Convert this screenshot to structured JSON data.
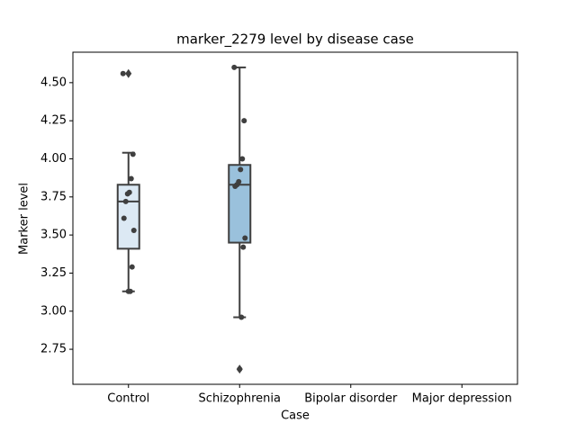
{
  "chart_data": {
    "type": "box",
    "title": "marker_2279 level by disease case",
    "x_label": "Case",
    "y_label": "Marker level",
    "categories": [
      "Control",
      "Schizophrenia",
      "Bipolar disorder",
      "Major depression"
    ],
    "boxes": [
      {
        "whislo": 3.13,
        "q1": 3.41,
        "med": 3.72,
        "q3": 3.83,
        "whishi": 4.04,
        "fliers": [
          4.56
        ],
        "color": "#dce9f4"
      },
      {
        "whislo": 2.96,
        "q1": 3.45,
        "med": 3.83,
        "q3": 3.96,
        "whishi": 4.6,
        "fliers": [
          2.62
        ],
        "color": "#9ac1dc"
      },
      null,
      null
    ],
    "points": [
      [
        4.56,
        4.03,
        3.87,
        3.78,
        3.77,
        3.72,
        3.61,
        3.53,
        3.29,
        3.13,
        3.13
      ],
      [
        4.6,
        4.25,
        4.0,
        3.93,
        3.85,
        3.83,
        3.82,
        3.48,
        3.42,
        2.96,
        2.62
      ],
      [],
      []
    ],
    "point_color": "#3f3f3f",
    "ylim": [
      2.52,
      4.7
    ],
    "yticks": [
      {
        "value": 2.75,
        "label": "2.75"
      },
      {
        "value": 3.0,
        "label": "3.00"
      },
      {
        "value": 3.25,
        "label": "3.25"
      },
      {
        "value": 3.5,
        "label": "3.50"
      },
      {
        "value": 3.75,
        "label": "3.75"
      },
      {
        "value": 4.0,
        "label": "4.00"
      },
      {
        "value": 4.25,
        "label": "4.25"
      },
      {
        "value": 4.5,
        "label": "4.50"
      }
    ]
  }
}
